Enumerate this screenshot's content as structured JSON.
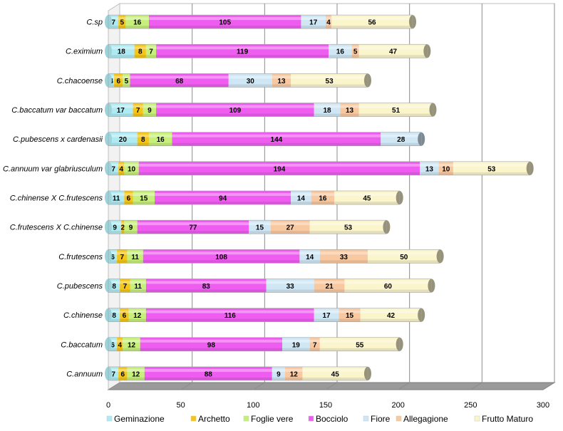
{
  "chart_data": {
    "type": "bar",
    "orientation": "horizontal",
    "stacked": true,
    "title": "",
    "xlabel": "",
    "ylabel": "",
    "xlim": [
      0,
      300
    ],
    "x_ticks": [
      0,
      50,
      100,
      150,
      200,
      250,
      300
    ],
    "grid": true,
    "legend_position": "bottom",
    "categories": [
      "C.sp",
      "C.eximium",
      "C.chacoense",
      "C.baccatum var baccatum",
      "C.pubescens x cardenasii",
      "C.annuum var glabriusculum",
      "C.chinense X C.frutescens",
      "C.frutescens X C.chinense",
      "C.frutescens",
      "C.pubescens",
      "C.chinense",
      "C.baccatum",
      "C.annuum"
    ],
    "series": [
      {
        "name": "Geminazione",
        "color": "#aeeaf2",
        "values": [
          7,
          18,
          4,
          17,
          20,
          7,
          11,
          9,
          6,
          8,
          8,
          6,
          7
        ]
      },
      {
        "name": "Archetto",
        "color": "#f5c518",
        "values": [
          5,
          8,
          6,
          7,
          8,
          4,
          6,
          2,
          7,
          7,
          6,
          4,
          6
        ]
      },
      {
        "name": "Foglie vere",
        "color": "#c6f07a",
        "values": [
          16,
          7,
          5,
          9,
          16,
          10,
          15,
          9,
          11,
          11,
          12,
          12,
          12
        ]
      },
      {
        "name": "Bocciolo",
        "color": "#ee5cf0",
        "values": [
          105,
          119,
          68,
          109,
          144,
          194,
          94,
          77,
          108,
          83,
          116,
          98,
          88
        ]
      },
      {
        "name": "Fiore",
        "color": "#cfe6f5",
        "values": [
          17,
          16,
          30,
          18,
          28,
          13,
          14,
          15,
          14,
          33,
          17,
          19,
          9
        ]
      },
      {
        "name": "Allegagione",
        "color": "#f8c8a0",
        "values": [
          4,
          5,
          13,
          13,
          0,
          10,
          16,
          27,
          33,
          21,
          15,
          7,
          12
        ]
      },
      {
        "name": "Frutto Maturo",
        "color": "#fbf5cc",
        "values": [
          56,
          47,
          53,
          51,
          0,
          53,
          45,
          53,
          50,
          60,
          42,
          55,
          45
        ]
      }
    ]
  }
}
